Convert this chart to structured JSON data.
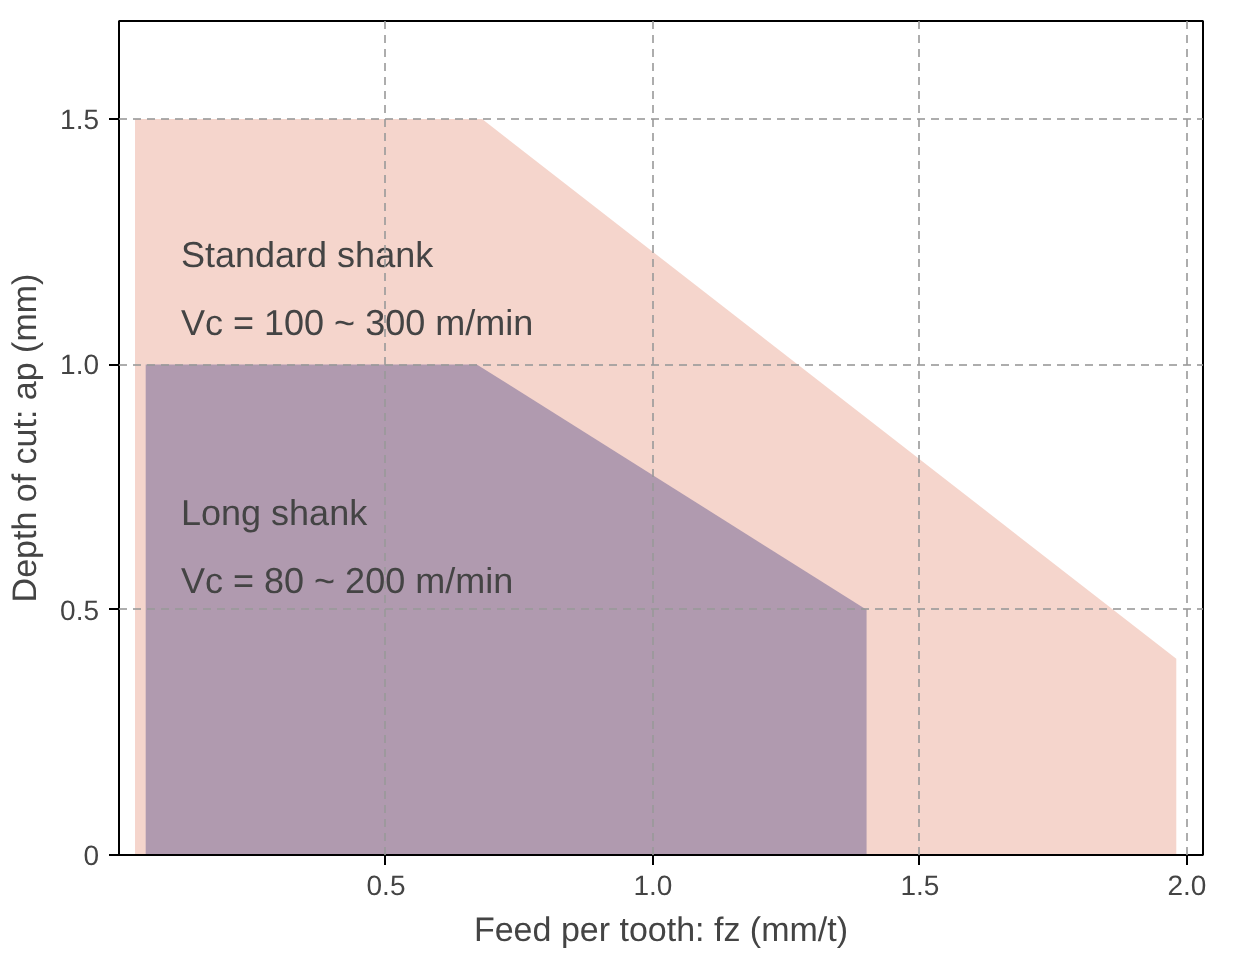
{
  "chart_data": {
    "type": "area",
    "xlabel": "Feed per tooth: fz (mm/t)",
    "ylabel": "Depth of cut: ap (mm)",
    "xlim": [
      0,
      2.03
    ],
    "ylim": [
      0,
      1.7
    ],
    "xticks": [
      0.5,
      {
        "value": 1,
        "label": "1.0"
      },
      1.5,
      {
        "value": 2,
        "label": "2.0"
      }
    ],
    "yticks": [
      0,
      0.5,
      {
        "value": 1,
        "label": "1.0"
      },
      1.5
    ],
    "grid": true,
    "series": [
      {
        "color": "#f5d5cc",
        "x": [
          0.03,
          0.68,
          1.98
        ],
        "values": [
          1.5,
          1.5,
          0.4
        ]
      },
      {
        "color": "#b09aaf",
        "x": [
          0.05,
          0.67,
          1.4
        ],
        "values": [
          1.0,
          1.0,
          0.5
        ]
      }
    ],
    "annotations": [
      "Standard shank",
      "Vc = 100 ~ 300 m/min",
      "Long shank",
      "Vc = 80 ~ 200 m/min"
    ]
  }
}
